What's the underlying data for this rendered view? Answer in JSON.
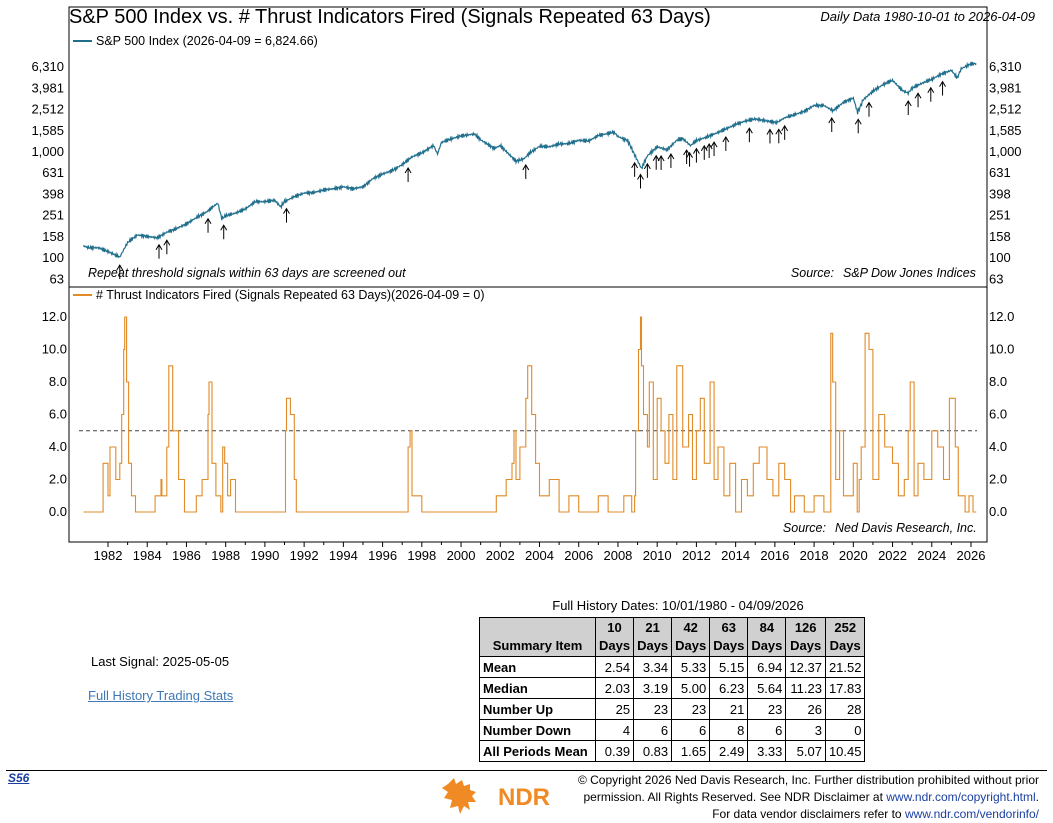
{
  "header": {
    "title": "S&P 500 Index vs. # Thrust Indicators Fired (Signals Repeated 63 Days)",
    "subtitle": "Daily Data 1980-10-01 to 2026-04-09"
  },
  "chart_data": [
    {
      "type": "line",
      "panel": "upper",
      "legend": "S&P 500 Index (2026-04-09 = 6,824.66)",
      "series": [
        {
          "name": "S&P 500 Index",
          "color": "#1f6e8c",
          "x": [
            1980.75,
            1981.0,
            1981.5,
            1982.0,
            1982.6,
            1983.0,
            1983.5,
            1984.0,
            1984.5,
            1985.0,
            1985.5,
            1986.0,
            1986.5,
            1987.0,
            1987.6,
            1987.8,
            1988.0,
            1988.5,
            1989.0,
            1989.5,
            1990.0,
            1990.5,
            1990.8,
            1991.0,
            1991.5,
            1992.0,
            1992.5,
            1993.0,
            1993.5,
            1994.0,
            1994.5,
            1995.0,
            1995.5,
            1996.0,
            1996.5,
            1997.0,
            1997.5,
            1998.0,
            1998.6,
            1998.8,
            1999.0,
            1999.5,
            2000.0,
            2000.7,
            2001.0,
            2001.7,
            2002.0,
            2002.8,
            2003.2,
            2003.5,
            2004.0,
            2004.5,
            2005.0,
            2005.5,
            2006.0,
            2006.5,
            2007.0,
            2007.8,
            2008.0,
            2008.5,
            2008.9,
            2009.2,
            2009.5,
            2010.0,
            2010.5,
            2011.0,
            2011.3,
            2011.7,
            2012.0,
            2012.5,
            2013.0,
            2013.5,
            2014.0,
            2014.5,
            2015.0,
            2015.6,
            2016.1,
            2016.5,
            2017.0,
            2017.5,
            2018.0,
            2018.5,
            2018.97,
            2019.5,
            2020.0,
            2020.22,
            2020.5,
            2021.0,
            2021.5,
            2022.0,
            2022.5,
            2022.8,
            2023.0,
            2023.5,
            2024.0,
            2024.5,
            2025.0,
            2025.3,
            2025.5,
            2026.0,
            2026.27
          ],
          "values": [
            130,
            125,
            125,
            115,
            102,
            140,
            165,
            160,
            155,
            175,
            190,
            210,
            240,
            270,
            330,
            235,
            250,
            265,
            290,
            340,
            340,
            350,
            305,
            340,
            380,
            410,
            415,
            440,
            450,
            470,
            450,
            470,
            560,
            620,
            670,
            760,
            900,
            980,
            1150,
            960,
            1230,
            1330,
            1420,
            1480,
            1300,
            1080,
            1150,
            820,
            860,
            980,
            1130,
            1120,
            1190,
            1200,
            1290,
            1270,
            1430,
            1540,
            1400,
            1280,
            900,
            700,
            920,
            1120,
            1050,
            1290,
            1340,
            1150,
            1280,
            1380,
            1500,
            1650,
            1820,
            1960,
            2050,
            1960,
            1900,
            2100,
            2250,
            2420,
            2750,
            2750,
            2450,
            2950,
            3230,
            2350,
            3100,
            3750,
            4300,
            4750,
            3800,
            3600,
            4000,
            4450,
            4850,
            5450,
            5900,
            5000,
            6100,
            6800,
            6824.66
          ]
        }
      ],
      "signal_arrows_years": [
        1982.6,
        1984.6,
        1985.0,
        1987.1,
        1987.9,
        1991.1,
        1997.3,
        2003.3,
        2008.85,
        2009.15,
        2009.5,
        2009.95,
        2010.2,
        2010.7,
        2011.5,
        2011.65,
        2012.0,
        2012.4,
        2012.65,
        2012.9,
        2013.5,
        2014.7,
        2015.75,
        2016.2,
        2016.5,
        2018.9,
        2020.25,
        2020.8,
        2022.8,
        2023.3,
        2023.95,
        2024.55
      ],
      "scale": "log",
      "yticks": [
        "63",
        "100",
        "158",
        "251",
        "398",
        "631",
        "1,000",
        "1,585",
        "2,512",
        "3,981",
        "6,310"
      ],
      "note": "Repeat threshold signals within 63 days are screened out",
      "source_label": "Source:",
      "source": "S&P Dow Jones Indices"
    },
    {
      "type": "line",
      "panel": "lower",
      "legend": "# Thrust Indicators Fired (Signals Repeated 63 Days)(2026-04-09 = 0)",
      "series": [
        {
          "name": "# Thrust Indicators Fired",
          "color": "#e08a28",
          "x": [
            1980.75,
            1981.7,
            1981.75,
            1982.0,
            1982.1,
            1982.4,
            1982.6,
            1982.7,
            1982.8,
            1982.85,
            1982.95,
            1983.05,
            1983.2,
            1983.4,
            1983.6,
            1984.2,
            1984.4,
            1984.7,
            1984.75,
            1985.0,
            1985.1,
            1985.3,
            1985.6,
            1985.9,
            1986.3,
            1986.5,
            1986.8,
            1987.1,
            1987.15,
            1987.3,
            1987.5,
            1987.75,
            1987.85,
            1987.95,
            1988.1,
            1988.25,
            1988.5,
            1988.7,
            1989.0,
            1989.5,
            1990.2,
            1990.5,
            1991.0,
            1991.05,
            1991.1,
            1991.3,
            1991.5,
            1991.6,
            1992.0,
            1993.0,
            1994.0,
            1995.0,
            1996.0,
            1997.0,
            1997.3,
            1997.4,
            1997.5,
            1998.0,
            1998.4,
            1998.8,
            1999.2,
            1999.5,
            2000.0,
            2000.8,
            2001.2,
            2001.8,
            2002.3,
            2002.6,
            2002.7,
            2002.8,
            2003.0,
            2003.3,
            2003.4,
            2003.6,
            2003.8,
            2004.0,
            2004.5,
            2005.0,
            2005.5,
            2006.0,
            2006.5,
            2007.0,
            2007.5,
            2007.9,
            2008.3,
            2008.7,
            2008.85,
            2008.9,
            2009.05,
            2009.15,
            2009.2,
            2009.3,
            2009.5,
            2009.6,
            2009.8,
            2010.0,
            2010.2,
            2010.4,
            2010.6,
            2010.8,
            2011.0,
            2011.3,
            2011.6,
            2011.8,
            2012.0,
            2012.2,
            2012.4,
            2012.7,
            2012.9,
            2013.1,
            2013.4,
            2013.7,
            2014.0,
            2014.3,
            2014.6,
            2014.9,
            2015.2,
            2015.6,
            2015.9,
            2016.2,
            2016.5,
            2016.8,
            2017.0,
            2017.5,
            2018.0,
            2018.5,
            2018.7,
            2018.85,
            2018.95,
            2019.1,
            2019.3,
            2019.5,
            2020.0,
            2020.2,
            2020.3,
            2020.4,
            2020.6,
            2020.8,
            2021.0,
            2021.3,
            2021.6,
            2022.0,
            2022.3,
            2022.6,
            2022.8,
            2022.9,
            2023.1,
            2023.3,
            2023.6,
            2024.0,
            2024.3,
            2024.6,
            2024.9,
            2025.2,
            2025.35,
            2025.5,
            2025.7,
            2025.9,
            2026.1,
            2026.27
          ],
          "values": [
            0,
            0,
            3,
            1,
            4,
            2,
            3,
            6,
            10,
            12,
            8,
            3,
            1,
            0,
            0,
            0,
            1,
            2,
            1,
            4,
            9,
            5,
            2,
            0,
            0,
            1,
            2,
            6,
            8,
            3,
            1,
            0,
            4,
            3,
            1,
            2,
            0,
            0,
            0,
            0,
            0,
            0,
            0,
            5,
            7,
            6,
            2,
            0,
            0,
            0,
            0,
            0,
            0,
            0,
            4,
            5,
            1,
            0,
            0,
            0,
            0,
            0,
            0,
            0,
            0,
            1,
            2,
            3,
            5,
            2,
            4,
            7,
            9,
            6,
            3,
            1,
            2,
            0,
            1,
            0,
            0,
            1,
            0,
            0,
            1,
            0,
            1,
            5,
            10,
            12,
            9,
            6,
            4,
            8,
            2,
            7,
            5,
            3,
            6,
            2,
            9,
            4,
            6,
            2,
            5,
            7,
            3,
            8,
            2,
            4,
            1,
            3,
            0,
            2,
            1,
            3,
            4,
            2,
            1,
            3,
            2,
            0,
            1,
            0,
            1,
            0,
            0,
            11,
            8,
            2,
            5,
            1,
            3,
            0,
            2,
            4,
            11,
            10,
            2,
            6,
            4,
            3,
            1,
            2,
            5,
            8,
            1,
            3,
            2,
            5,
            4,
            2,
            7,
            4,
            1,
            1,
            0,
            1,
            0,
            0
          ]
        }
      ],
      "threshold": 5,
      "yticks": [
        "0.0",
        "2.0",
        "4.0",
        "6.0",
        "8.0",
        "10.0",
        "12.0"
      ],
      "source_label": "Source:",
      "source": "Ned Davis Research, Inc."
    }
  ],
  "x_axis": {
    "ticks": [
      "1982",
      "1984",
      "1986",
      "1988",
      "1990",
      "1992",
      "1994",
      "1996",
      "1998",
      "2000",
      "2002",
      "2004",
      "2006",
      "2008",
      "2010",
      "2012",
      "2014",
      "2016",
      "2018",
      "2020",
      "2022",
      "2024",
      "2026"
    ]
  },
  "stats": {
    "caption": "Full History Dates: 10/01/1980 - 04/09/2026",
    "corner_label": "Summary Item",
    "periods": [
      {
        "n": "10",
        "unit": "Days"
      },
      {
        "n": "21",
        "unit": "Days"
      },
      {
        "n": "42",
        "unit": "Days"
      },
      {
        "n": "63",
        "unit": "Days"
      },
      {
        "n": "84",
        "unit": "Days"
      },
      {
        "n": "126",
        "unit": "Days"
      },
      {
        "n": "252",
        "unit": "Days"
      }
    ],
    "rows": [
      {
        "label": "Mean",
        "values": [
          "2.54",
          "3.34",
          "5.33",
          "5.15",
          "6.94",
          "12.37",
          "21.52"
        ]
      },
      {
        "label": "Median",
        "values": [
          "2.03",
          "3.19",
          "5.00",
          "6.23",
          "5.64",
          "11.23",
          "17.83"
        ]
      },
      {
        "label": "Number Up",
        "values": [
          "25",
          "23",
          "23",
          "21",
          "23",
          "26",
          "28"
        ]
      },
      {
        "label": "Number Down",
        "values": [
          "4",
          "6",
          "6",
          "8",
          "6",
          "3",
          "0"
        ]
      },
      {
        "label": "All Periods Mean",
        "values": [
          "0.39",
          "0.83",
          "1.65",
          "2.49",
          "3.33",
          "5.07",
          "10.45"
        ]
      }
    ]
  },
  "last_signal": "Last Signal: 2025-05-05",
  "full_history_link": "Full History Trading Stats",
  "footer": {
    "page_code": "S56",
    "logo_text": "NDR",
    "line1": "© Copyright 2026 Ned Davis Research, Inc. Further distribution prohibited without prior",
    "line2_text": "permission. All Rights Reserved. See NDR Disclaimer at ",
    "line2_link": "www.ndr.com/copyright.html",
    "line2_end": ".",
    "line3_text": "For data vendor disclaimers refer to ",
    "line3_link": "www.ndr.com/vendorinfo/"
  }
}
